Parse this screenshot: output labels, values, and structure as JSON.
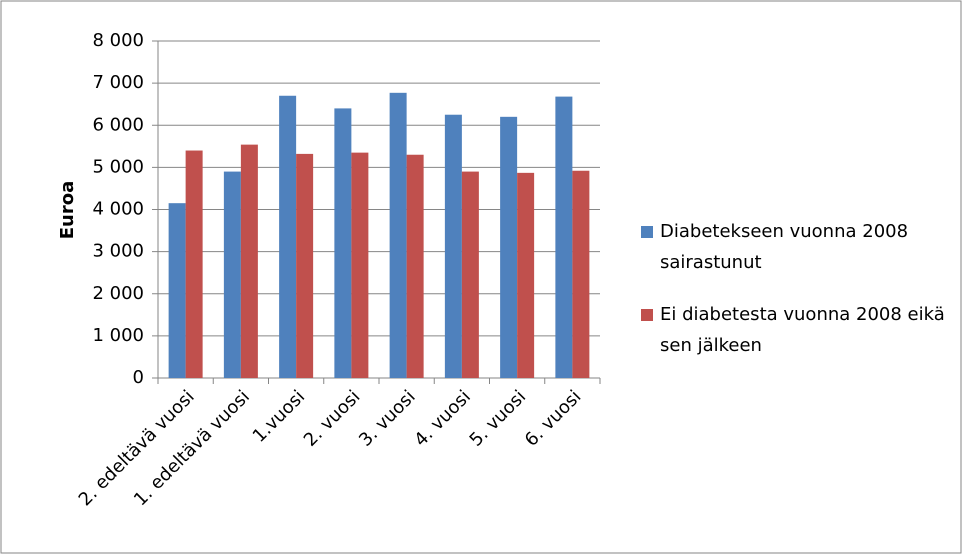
{
  "chart_data": {
    "type": "bar",
    "y_label": "Euroa",
    "categories": [
      "2. edeltävä vuosi",
      "1. edeltävä vuosi",
      "1.vuosi",
      "2. vuosi",
      "3. vuosi",
      "4. vuosi",
      "5. vuosi",
      "6. vuosi"
    ],
    "series": [
      {
        "name": "Diabetekseen vuonna 2008 sairastunut",
        "color": "#4f81bd",
        "values": [
          4150,
          4900,
          6700,
          6400,
          6770,
          6250,
          6200,
          6680
        ]
      },
      {
        "name": "Ei diabetesta vuonna 2008 eikä sen jälkeen",
        "color": "#c0504d",
        "values": [
          5400,
          5540,
          5320,
          5350,
          5300,
          4900,
          4870,
          4920
        ]
      }
    ],
    "ylim": [
      0,
      8000
    ],
    "yticks": [
      0,
      {
        "value": 1000,
        "label": "1 000"
      },
      {
        "value": 2000,
        "label": "2 000"
      },
      {
        "value": 3000,
        "label": "3 000"
      },
      {
        "value": 4000,
        "label": "4 000"
      },
      {
        "value": 5000,
        "label": "5 000"
      },
      {
        "value": 6000,
        "label": "6 000"
      },
      {
        "value": 7000,
        "label": "7 000"
      },
      {
        "value": 8000,
        "label": "8 000"
      }
    ],
    "grid": true,
    "legend": "right"
  }
}
